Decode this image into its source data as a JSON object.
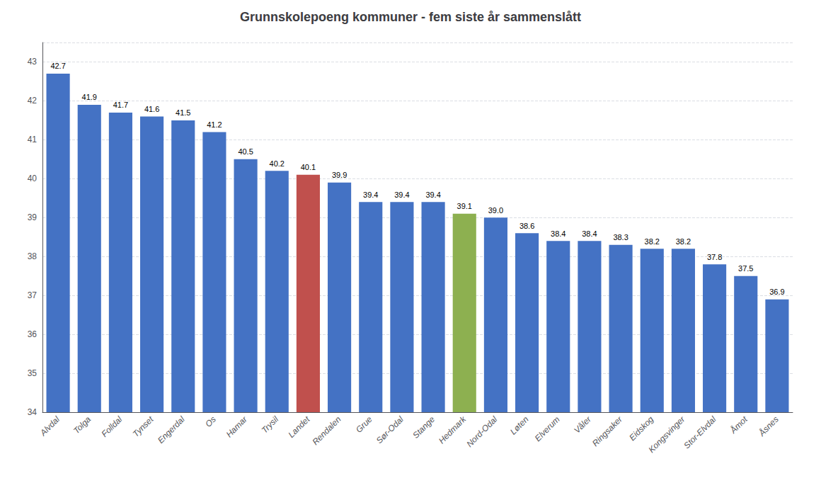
{
  "chart_data": {
    "type": "bar",
    "title": "Grunnskolepoeng kommuner - fem siste år sammenslått",
    "categories": [
      "Alvdal",
      "Tolga",
      "Folldal",
      "Tynset",
      "Engerdal",
      "Os",
      "Hamar",
      "Trysil",
      "Landet",
      "Rendalen",
      "Grue",
      "Sør-Odal",
      "Stange",
      "Hedmark",
      "Nord-Odal",
      "Løten",
      "Elverum",
      "Våler",
      "Ringsaker",
      "Eidskog",
      "Kongsvinger",
      "Stor-Elvdal",
      "Åmot",
      "Åsnes"
    ],
    "values": [
      42.7,
      41.9,
      41.7,
      41.6,
      41.5,
      41.2,
      40.5,
      40.2,
      40.1,
      39.9,
      39.4,
      39.4,
      39.4,
      39.1,
      39.0,
      38.6,
      38.4,
      38.4,
      38.3,
      38.2,
      38.2,
      37.8,
      37.5,
      36.9
    ],
    "value_labels": [
      "42.7",
      "41.9",
      "41.7",
      "41.6",
      "41.5",
      "41.2",
      "40.5",
      "40.2",
      "40.1",
      "39.9",
      "39.4",
      "39.4",
      "39.4",
      "39.1",
      "39.0",
      "38.6",
      "38.4",
      "38.4",
      "38.3",
      "38.2",
      "38.2",
      "37.8",
      "37.5",
      "36.9"
    ],
    "colors": [
      "#4472C4",
      "#4472C4",
      "#4472C4",
      "#4472C4",
      "#4472C4",
      "#4472C4",
      "#4472C4",
      "#4472C4",
      "#C0504D",
      "#4472C4",
      "#4472C4",
      "#4472C4",
      "#4472C4",
      "#8DB050",
      "#4472C4",
      "#4472C4",
      "#4472C4",
      "#4472C4",
      "#4472C4",
      "#4472C4",
      "#4472C4",
      "#4472C4",
      "#4472C4",
      "#4472C4"
    ],
    "ylim": [
      34,
      43.5
    ],
    "yticks": [
      34,
      35,
      36,
      37,
      38,
      39,
      40,
      41,
      42,
      43
    ],
    "grid": true,
    "data_labels": true
  }
}
